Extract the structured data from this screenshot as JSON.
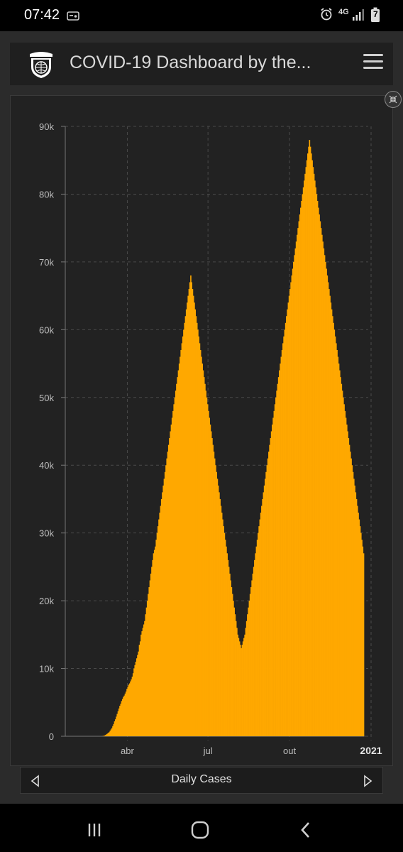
{
  "status": {
    "time": "07:42",
    "network": "4G",
    "battery_level": "7"
  },
  "header": {
    "title": "COVID-19 Dashboard by the...",
    "logo": "university-shield-icon",
    "menu_icon": "hamburger-menu-icon"
  },
  "chart_nav": {
    "label": "Daily Cases",
    "prev_icon": "triangle-left-icon",
    "next_icon": "triangle-right-icon",
    "collapse_icon": "collapse-arrows-icon"
  },
  "chart_data": {
    "type": "bar",
    "title": "",
    "xlabel": "",
    "ylabel": "",
    "ylim": [
      0,
      90000
    ],
    "yticks": [
      0,
      10000,
      20000,
      30000,
      40000,
      50000,
      60000,
      70000,
      80000,
      90000
    ],
    "ytick_labels": [
      "0",
      "10k",
      "20k",
      "30k",
      "40k",
      "50k",
      "60k",
      "70k",
      "80k",
      "90k"
    ],
    "xticks": [
      {
        "label": "abr",
        "day": 70,
        "bold": false
      },
      {
        "label": "jul",
        "day": 161,
        "bold": false
      },
      {
        "label": "out",
        "day": 253,
        "bold": false
      },
      {
        "label": "2021",
        "day": 345,
        "bold": true
      }
    ],
    "grid": true,
    "bar_color": "#FFA800",
    "x_start": "2020-01-22",
    "x_end": "2021-01-07",
    "values": [
      0,
      0,
      0,
      0,
      0,
      0,
      0,
      0,
      0,
      0,
      0,
      0,
      0,
      0,
      0,
      0,
      0,
      0,
      0,
      0,
      0,
      0,
      0,
      0,
      0,
      0,
      0,
      0,
      0,
      0,
      0,
      0,
      0,
      0,
      0,
      0,
      0,
      0,
      0,
      0,
      0,
      0,
      50,
      80,
      120,
      200,
      300,
      400,
      500,
      600,
      800,
      1000,
      1200,
      1500,
      1800,
      2200,
      2500,
      2900,
      3300,
      3700,
      4100,
      4500,
      4800,
      5200,
      5500,
      5800,
      6000,
      6300,
      6600,
      7000,
      7300,
      7600,
      7800,
      8100,
      8400,
      8800,
      9300,
      10000,
      10500,
      11000,
      11500,
      12000,
      12500,
      13500,
      14000,
      15000,
      15500,
      16000,
      16500,
      17000,
      18000,
      19000,
      20000,
      21000,
      22000,
      23000,
      24000,
      25000,
      26000,
      27000,
      27500,
      28000,
      29000,
      30000,
      31000,
      32000,
      33000,
      34000,
      35000,
      36000,
      37000,
      38000,
      39000,
      40000,
      41000,
      42000,
      43000,
      44000,
      45000,
      46000,
      47000,
      48000,
      49000,
      50000,
      51000,
      52000,
      53000,
      54000,
      55000,
      56000,
      57000,
      58000,
      59000,
      60000,
      61000,
      62000,
      63000,
      64000,
      65000,
      66000,
      67000,
      68000,
      67000,
      66000,
      65000,
      64000,
      63000,
      62000,
      61000,
      60000,
      59000,
      58000,
      57000,
      56000,
      55000,
      54000,
      53000,
      52000,
      51000,
      50000,
      49000,
      48000,
      47000,
      46000,
      45000,
      44000,
      43000,
      42000,
      41000,
      40000,
      39000,
      38000,
      37000,
      36000,
      35000,
      34000,
      33000,
      32000,
      31000,
      30000,
      29000,
      28000,
      27000,
      26000,
      25000,
      24000,
      23000,
      22000,
      21000,
      20000,
      19000,
      18000,
      17000,
      16000,
      15000,
      14500,
      14000,
      13500,
      13000,
      13500,
      14000,
      14500,
      15000,
      16000,
      17000,
      18000,
      19000,
      20000,
      21000,
      22000,
      23000,
      24000,
      25000,
      26000,
      27000,
      28000,
      29000,
      30000,
      31000,
      32000,
      33000,
      34000,
      35000,
      36000,
      37000,
      38000,
      39000,
      40000,
      41000,
      42000,
      43000,
      44000,
      45000,
      46000,
      47000,
      48000,
      49000,
      50000,
      51000,
      52000,
      53000,
      54000,
      55000,
      56000,
      57000,
      58000,
      59000,
      60000,
      61000,
      62000,
      63000,
      64000,
      65000,
      66000,
      67000,
      68000,
      69000,
      70000,
      71000,
      72000,
      73000,
      74000,
      75000,
      76000,
      77000,
      78000,
      79000,
      80000,
      81000,
      82000,
      83000,
      84000,
      85000,
      86000,
      87000,
      88000,
      87000,
      86000,
      85000,
      84000,
      83000,
      82000,
      81000,
      80000,
      79000,
      78000,
      77000,
      76000,
      75000,
      74000,
      73000,
      72000,
      71000,
      70000,
      69000,
      68000,
      67000,
      66000,
      65000,
      64000,
      63000,
      62000,
      61000,
      60000,
      59000,
      58000,
      57000,
      56000,
      55000,
      54000,
      53000,
      52000,
      51000,
      50000,
      49000,
      48000,
      47000,
      46000,
      45000,
      44000,
      43000,
      42000,
      41000,
      40000,
      39000,
      38000,
      37000,
      36000,
      35000,
      34000,
      33000,
      32000,
      31000,
      30000,
      29000,
      28000,
      27000
    ]
  }
}
